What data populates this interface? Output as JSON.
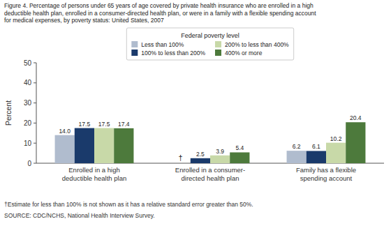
{
  "chart_data": {
    "type": "bar",
    "title": "Figure 4. Percentage of persons under 65 years of age covered by private health insurance who are enrolled in a high\ndeductible health plan, enrolled in a consumer-directed health plan, or were in a family with a flexible spending account\nfor medical expenses, by poverty status: United States, 2007",
    "categories": [
      "Enrolled in a high\ndeductible health plan",
      "Enrolled in a consumer-\ndirected health plan",
      "Family has a flexible\nspending account"
    ],
    "series": [
      {
        "name": "Less than 100%",
        "color": "#b0bcce",
        "values": [
          14.0,
          null,
          6.2
        ],
        "value_labels": [
          "14.0",
          null,
          "6.2"
        ]
      },
      {
        "name": "100% to less than 200%",
        "color": "#1a3a6b",
        "values": [
          17.5,
          2.5,
          6.1
        ],
        "value_labels": [
          "17.5",
          "2.5",
          "6.1"
        ]
      },
      {
        "name": "200% to less than 400%",
        "color": "#c8d9a8",
        "values": [
          17.5,
          3.9,
          10.2
        ],
        "value_labels": [
          "17.5",
          "3.9",
          "10.2"
        ]
      },
      {
        "name": "400% or more",
        "color": "#4d7a3c",
        "values": [
          17.4,
          5.4,
          20.4
        ],
        "value_labels": [
          "17.4",
          "5.4",
          "20.4"
        ]
      }
    ],
    "legend_title": "Federal poverty level",
    "ylabel": "Percent",
    "ylim": [
      0,
      50
    ],
    "yticks": [
      0,
      10,
      20,
      30,
      40,
      50
    ],
    "null_label": "†",
    "footnote": "†Estimate for less than 100% is not shown as it has a relative standard error greater than 50%.",
    "source": "SOURCE: CDC/NCHS, National Health Interview Survey.",
    "data_labels": true,
    "grid": false,
    "legend": "top"
  }
}
